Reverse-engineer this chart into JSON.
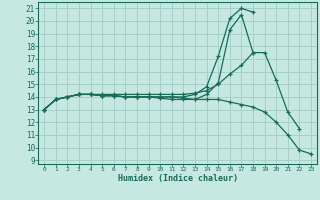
{
  "xlabel": "Humidex (Indice chaleur)",
  "bg_color": "#c5e8e0",
  "grid_color": "#a8cfc8",
  "line_color": "#1a6b5a",
  "xlim": [
    -0.5,
    23.5
  ],
  "ylim": [
    8.7,
    21.5
  ],
  "xticks": [
    0,
    1,
    2,
    3,
    4,
    5,
    6,
    7,
    8,
    9,
    10,
    11,
    12,
    13,
    14,
    15,
    16,
    17,
    18,
    19,
    20,
    21,
    22,
    23
  ],
  "yticks": [
    9,
    10,
    11,
    12,
    13,
    14,
    15,
    16,
    17,
    18,
    19,
    20,
    21
  ],
  "lines": [
    {
      "x": [
        0,
        1,
        2,
        3,
        4,
        5,
        6,
        7,
        8,
        9,
        10,
        11,
        12,
        13,
        14,
        15,
        16,
        17,
        18
      ],
      "y": [
        13.0,
        13.8,
        14.0,
        14.2,
        14.2,
        14.1,
        14.1,
        14.0,
        14.0,
        14.0,
        13.9,
        13.8,
        13.8,
        13.8,
        14.2,
        15.1,
        19.3,
        20.5,
        17.5
      ]
    },
    {
      "x": [
        0,
        1,
        2,
        3,
        4,
        5,
        6,
        7,
        8,
        9,
        10,
        11,
        12,
        13,
        14,
        15,
        16,
        17,
        18
      ],
      "y": [
        13.0,
        13.8,
        14.0,
        14.2,
        14.2,
        14.1,
        14.1,
        14.0,
        14.0,
        14.0,
        14.0,
        14.0,
        14.0,
        14.2,
        14.8,
        17.2,
        20.2,
        21.0,
        20.7
      ]
    },
    {
      "x": [
        0,
        1,
        2,
        3,
        4,
        5,
        6,
        7,
        8,
        9,
        10,
        11,
        12,
        13,
        14,
        15,
        16,
        17,
        18,
        19,
        20,
        21,
        22
      ],
      "y": [
        13.0,
        13.8,
        14.0,
        14.2,
        14.2,
        14.2,
        14.2,
        14.2,
        14.2,
        14.2,
        14.2,
        14.2,
        14.2,
        14.3,
        14.5,
        15.0,
        15.8,
        16.5,
        17.5,
        17.5,
        15.3,
        12.8,
        11.5
      ]
    },
    {
      "x": [
        0,
        1,
        2,
        3,
        4,
        5,
        6,
        7,
        8,
        9,
        10,
        11,
        12,
        13,
        14,
        15,
        16,
        17,
        18,
        19,
        20,
        21,
        22,
        23
      ],
      "y": [
        13.0,
        13.8,
        14.0,
        14.2,
        14.2,
        14.1,
        14.1,
        14.0,
        14.0,
        14.0,
        14.0,
        14.0,
        13.9,
        13.8,
        13.8,
        13.8,
        13.6,
        13.4,
        13.2,
        12.8,
        12.0,
        11.0,
        9.8,
        9.5
      ]
    }
  ]
}
